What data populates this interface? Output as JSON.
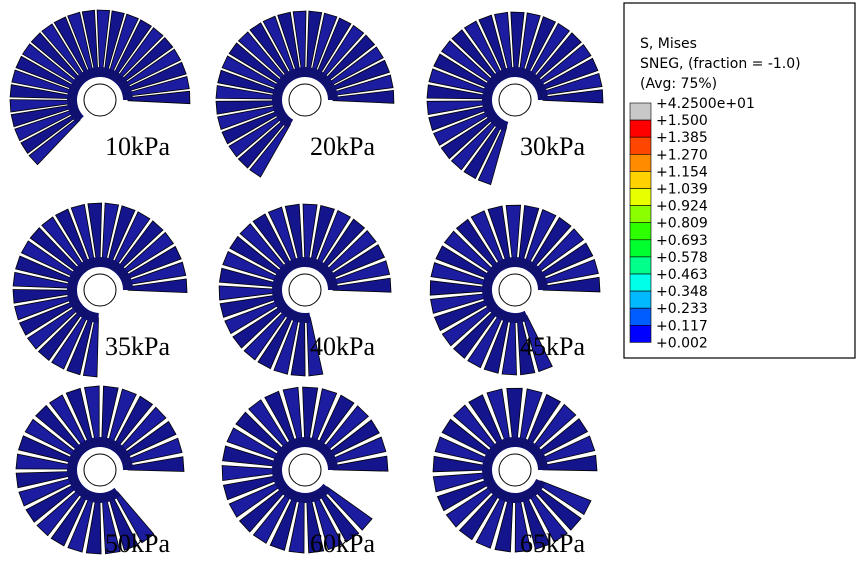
{
  "panels": [
    {
      "label": "10kPa"
    },
    {
      "label": "20kPa"
    },
    {
      "label": "30kPa"
    },
    {
      "label": "35kPa"
    },
    {
      "label": "40kPa"
    },
    {
      "label": "45kPa"
    },
    {
      "label": "50kPa"
    },
    {
      "label": "60kPa"
    },
    {
      "label": "65kPa"
    }
  ],
  "legend": {
    "title_lines": [
      "S, Mises",
      "SNEG, (fraction = -1.0)",
      "(Avg: 75%)"
    ],
    "labels": [
      "+4.2500e+01",
      "+1.500",
      "+1.385",
      "+1.270",
      "+1.154",
      "+1.039",
      "+0.924",
      "+0.809",
      "+0.693",
      "+0.578",
      "+0.463",
      "+0.348",
      "+0.233",
      "+0.117",
      "+0.002"
    ],
    "colors": [
      "#c8c8c8",
      "#ff0000",
      "#ff4600",
      "#ff8c00",
      "#ffd200",
      "#e8ff00",
      "#8bff00",
      "#2eff00",
      "#00ff2e",
      "#00ff8b",
      "#00ffe8",
      "#00b9ff",
      "#005dff",
      "#0000ff"
    ]
  }
}
